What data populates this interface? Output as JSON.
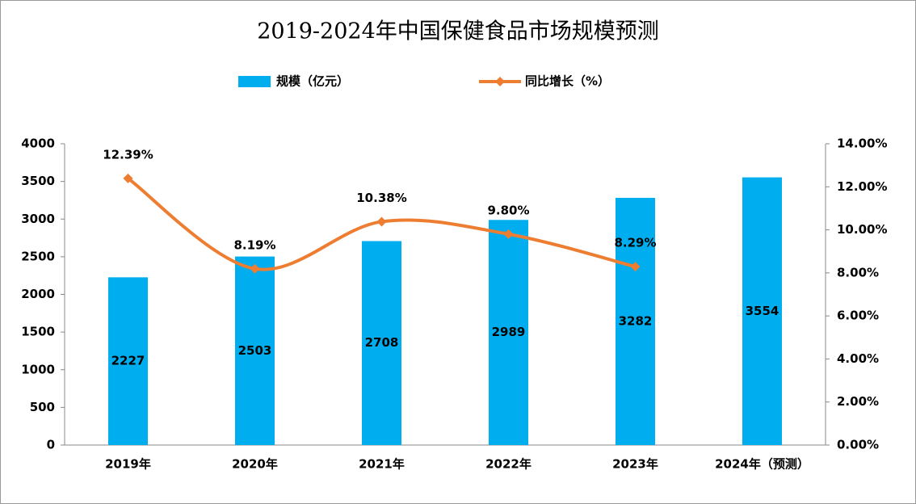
{
  "chart_data": {
    "type": "bar_line",
    "title": "2019-2024年中国保健食品市场规模预测",
    "categories": [
      "2019年",
      "2020年",
      "2021年",
      "2022年",
      "2023年",
      "2024年（预测）"
    ],
    "series": [
      {
        "name": "规模（亿元）",
        "type": "bar",
        "color": "#00aeef",
        "axis": "y",
        "values": [
          2227,
          2503,
          2708,
          2989,
          3282,
          3554
        ]
      },
      {
        "name": "同比增长（%）",
        "type": "line",
        "color": "#ed7d31",
        "axis": "y2",
        "smooth": true,
        "values": [
          12.39,
          8.19,
          10.38,
          9.8,
          8.29,
          null
        ],
        "value_labels": [
          "12.39%",
          "8.19%",
          "10.38%",
          "9.80%",
          "8.29%",
          null
        ]
      }
    ],
    "ylim": [
      0,
      4000
    ],
    "yticks": [
      0,
      500,
      1000,
      1500,
      2000,
      2500,
      3000,
      3500,
      4000
    ],
    "y2lim": [
      0,
      14
    ],
    "y2ticks": [
      {
        "value": 0,
        "label": "0.00%"
      },
      {
        "value": 2,
        "label": "2.00%"
      },
      {
        "value": 4,
        "label": "4.00%"
      },
      {
        "value": 6,
        "label": "6.00%"
      },
      {
        "value": 8,
        "label": "8.00%"
      },
      {
        "value": 10,
        "label": "10.00%"
      },
      {
        "value": 12,
        "label": "12.00%"
      },
      {
        "value": 14,
        "label": "14.00%"
      }
    ],
    "grid": false,
    "legend": "top"
  }
}
